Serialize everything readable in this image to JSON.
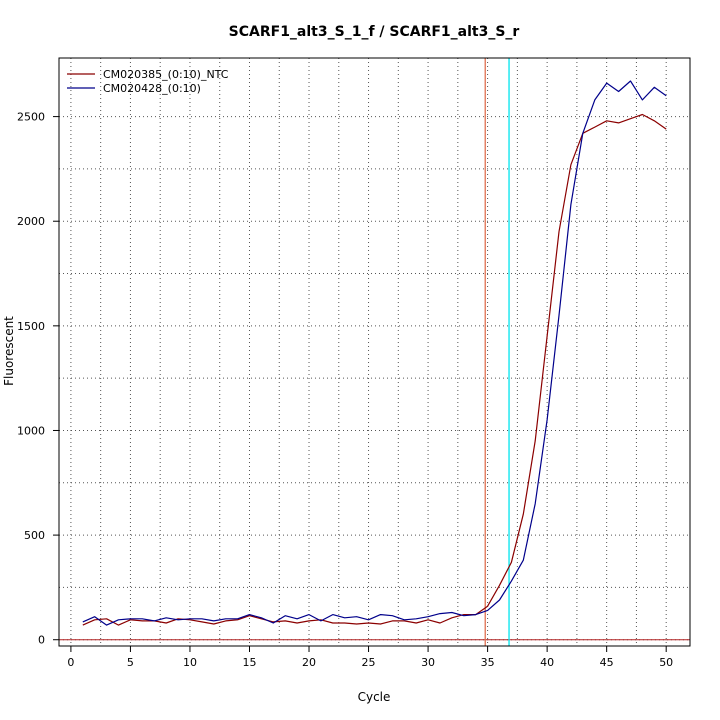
{
  "chart_data": {
    "type": "line",
    "title": "SCARF1_alt3_S_1_f / SCARF1_alt3_S_r",
    "xlabel": "Cycle",
    "ylabel": "Fluorescent",
    "xlim": [
      -1,
      52
    ],
    "ylim": [
      -30,
      2780
    ],
    "x_ticks": [
      0,
      5,
      10,
      15,
      20,
      25,
      30,
      35,
      40,
      45,
      50
    ],
    "y_ticks": [
      0,
      500,
      1000,
      1500,
      2000,
      2500
    ],
    "grid": true,
    "legend_position": "top-left",
    "x_minor_grid": [
      2.5,
      7.5,
      12.5,
      17.5,
      22.5,
      27.5,
      32.5,
      37.5,
      42.5,
      47.5
    ],
    "y_minor_grid": [
      250,
      750,
      1250,
      1750,
      2250
    ],
    "threshold_y": 0,
    "threshold_color": "#b22222",
    "vlines": [
      {
        "x": 34.8,
        "color": "#e07050"
      },
      {
        "x": 36.8,
        "color": "#00e5ee"
      }
    ],
    "series": [
      {
        "name": "CM020385_(0:10)_NTC",
        "color": "#8b0000",
        "x": [
          1,
          2,
          3,
          4,
          5,
          6,
          7,
          8,
          9,
          10,
          11,
          12,
          13,
          14,
          15,
          16,
          17,
          18,
          19,
          20,
          21,
          22,
          23,
          24,
          25,
          26,
          27,
          28,
          29,
          30,
          31,
          32,
          33,
          34,
          35,
          36,
          37,
          38,
          39,
          40,
          41,
          42,
          43,
          44,
          45,
          46,
          47,
          48,
          49,
          50
        ],
        "values": [
          70,
          95,
          100,
          70,
          95,
          90,
          90,
          80,
          100,
          95,
          85,
          75,
          90,
          95,
          115,
          100,
          85,
          90,
          80,
          90,
          95,
          80,
          80,
          75,
          80,
          75,
          90,
          90,
          80,
          95,
          80,
          105,
          120,
          120,
          160,
          260,
          370,
          600,
          950,
          1450,
          1950,
          2270,
          2420,
          2450,
          2480,
          2470,
          2490,
          2510,
          2480,
          2440
        ]
      },
      {
        "name": "CM020428_(0:10)",
        "color": "#00008b",
        "x": [
          1,
          2,
          3,
          4,
          5,
          6,
          7,
          8,
          9,
          10,
          11,
          12,
          13,
          14,
          15,
          16,
          17,
          18,
          19,
          20,
          21,
          22,
          23,
          24,
          25,
          26,
          27,
          28,
          29,
          30,
          31,
          32,
          33,
          34,
          35,
          36,
          37,
          38,
          39,
          40,
          41,
          42,
          43,
          44,
          45,
          46,
          47,
          48,
          49,
          50
        ],
        "values": [
          85,
          110,
          70,
          95,
          100,
          100,
          90,
          105,
          95,
          100,
          100,
          90,
          100,
          100,
          120,
          105,
          80,
          115,
          100,
          120,
          90,
          120,
          105,
          110,
          95,
          120,
          115,
          95,
          100,
          110,
          125,
          130,
          115,
          120,
          140,
          190,
          280,
          380,
          650,
          1050,
          1550,
          2080,
          2420,
          2580,
          2660,
          2620,
          2670,
          2580,
          2640,
          2600
        ]
      }
    ]
  }
}
